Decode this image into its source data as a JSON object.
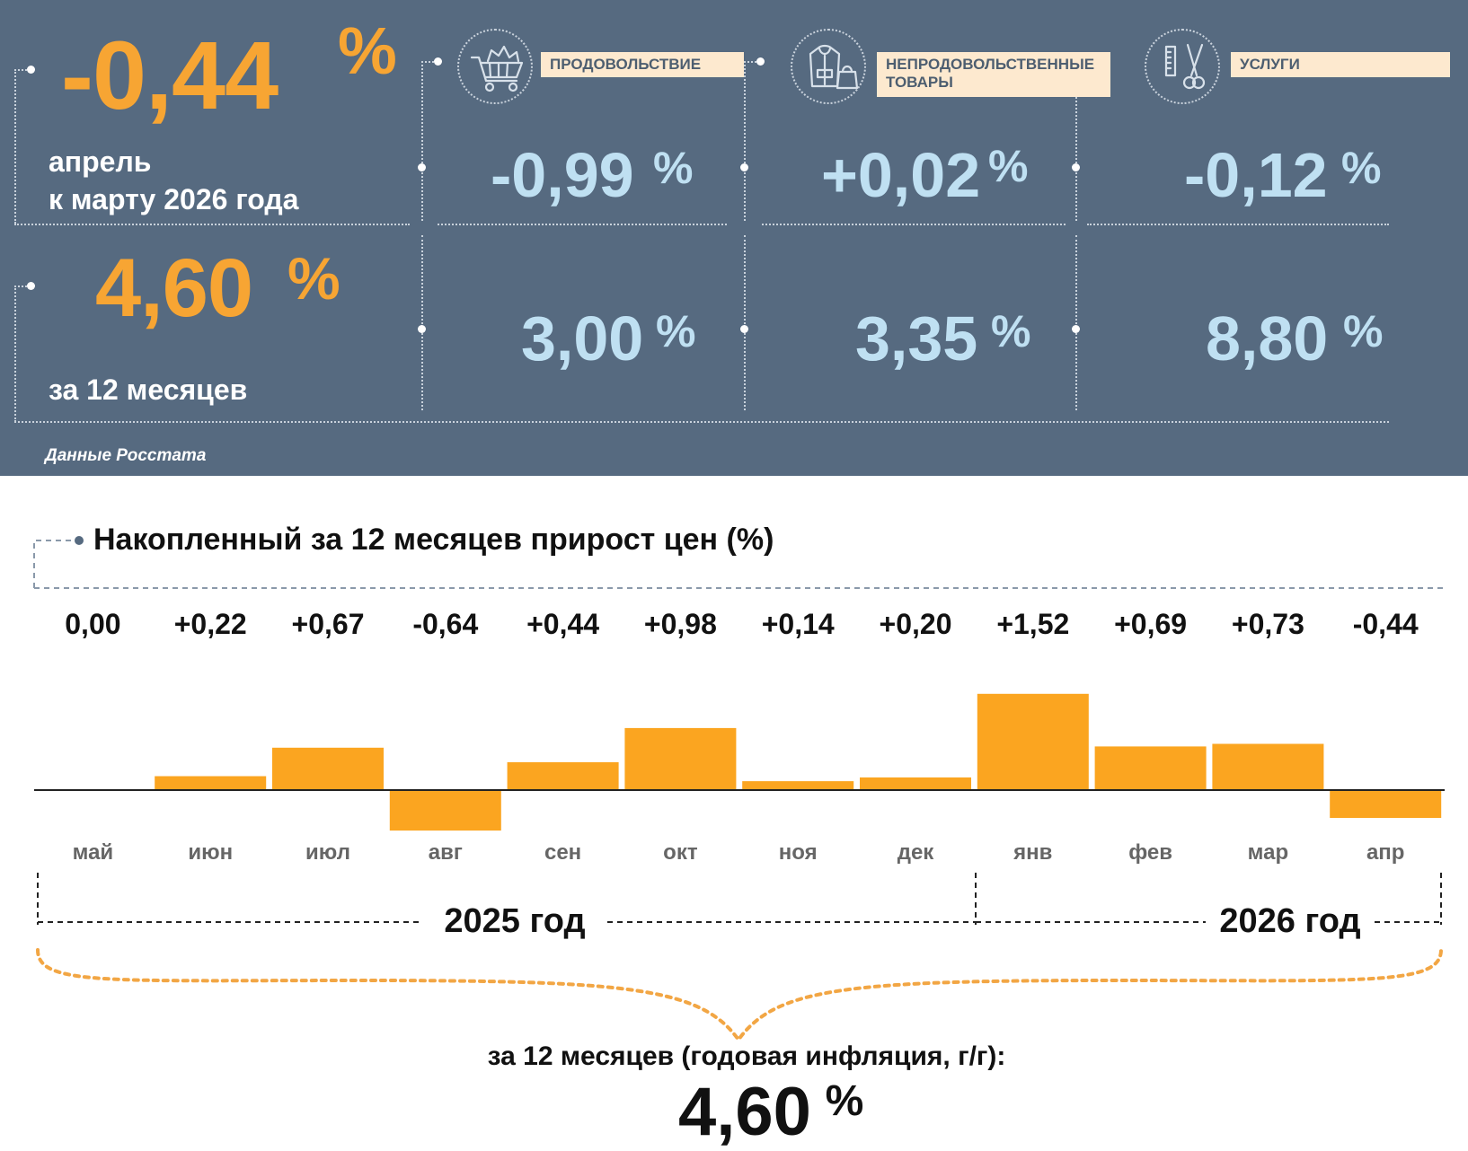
{
  "monthly": {
    "value": "-0,44",
    "pct": "%",
    "line1": "апрель",
    "line2": "к марту 2026 года"
  },
  "annual": {
    "value": "4,60",
    "pct": "%",
    "label": "за 12 месяцев"
  },
  "categories": [
    {
      "icon": "shopping-cart-icon",
      "label": "ПРОДОВОЛЬСТВИЕ",
      "monthly": "-0,99",
      "annual": "3,00",
      "pct": "%"
    },
    {
      "icon": "clothing-icon",
      "label_line1": "НЕПРОДОВОЛЬСТВЕННЫЕ",
      "label_line2": "ТОВАРЫ",
      "monthly": "+0,02",
      "annual": "3,35",
      "pct": "%"
    },
    {
      "icon": "scissors-comb-icon",
      "label": "УСЛУГИ",
      "monthly": "-0,12",
      "annual": "8,80",
      "pct": "%"
    }
  ],
  "source": "Данные Росстата",
  "chart_title": "Накопленный за 12 месяцев прирост цен (%)",
  "chart_data": {
    "type": "bar",
    "categories": [
      "май",
      "июн",
      "июл",
      "авг",
      "сен",
      "окт",
      "ноя",
      "дек",
      "янв",
      "фев",
      "мар",
      "апр"
    ],
    "values": [
      0.0,
      0.22,
      0.67,
      -0.64,
      0.44,
      0.98,
      0.14,
      0.2,
      1.52,
      0.69,
      0.73,
      -0.44
    ],
    "value_labels": [
      "0,00",
      "+0,22",
      "+0,67",
      "-0,64",
      "+0,44",
      "+0,98",
      "+0,14",
      "+0,20",
      "+1,52",
      "+0,69",
      "+0,73",
      "-0,44"
    ],
    "color": "#fba520",
    "year_labels": [
      "2025 год",
      "2026 год"
    ]
  },
  "footer": {
    "label": "за 12 месяцев (годовая инфляция, г/г):",
    "value": "4,60",
    "pct": "%"
  }
}
